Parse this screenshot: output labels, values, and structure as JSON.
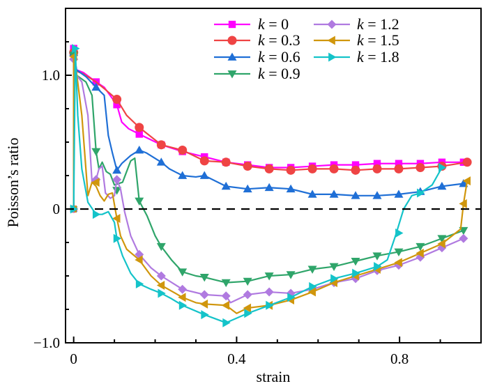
{
  "chart_data": {
    "type": "line",
    "title": "",
    "xlabel": "strain",
    "ylabel": "Poisson’s ratio",
    "xlim": [
      -0.02,
      1.0
    ],
    "ylim": [
      -1.0,
      1.5
    ],
    "x_ticks": [
      0,
      0.4,
      0.8
    ],
    "x_tick_labels": [
      "0",
      "0.4",
      "0.8"
    ],
    "x_minor_ticks": [
      0.1,
      0.2,
      0.3,
      0.5,
      0.6,
      0.7,
      0.9
    ],
    "y_ticks": [
      -1.0,
      0,
      1.0
    ],
    "y_tick_labels": [
      "−1.0",
      "0",
      "1.0"
    ],
    "y_minor_ticks": [
      -0.75,
      -0.5,
      -0.25,
      0.25,
      0.5,
      0.75,
      1.25
    ],
    "reference_line": {
      "y": 0,
      "style": "dashed",
      "color": "#000000"
    },
    "grid": false,
    "legend": {
      "placement": "top-right",
      "columns": 2
    },
    "series": [
      {
        "name": "k = 0",
        "k": "0",
        "color": "#ff00ff",
        "marker": "square",
        "x": [
          0,
          0.007,
          0.024,
          0.055,
          0.075,
          0.106,
          0.118,
          0.135,
          0.161,
          0.215,
          0.267,
          0.321,
          0.374,
          0.427,
          0.48,
          0.533,
          0.586,
          0.639,
          0.692,
          0.745,
          0.798,
          0.851,
          0.904,
          0.957
        ],
        "y": [
          1.2,
          1.04,
          1.02,
          0.95,
          0.91,
          0.78,
          0.65,
          0.6,
          0.56,
          0.48,
          0.43,
          0.39,
          0.35,
          0.33,
          0.31,
          0.31,
          0.32,
          0.33,
          0.33,
          0.34,
          0.34,
          0.34,
          0.35,
          0.35
        ],
        "markers_x": [
          0,
          0.055,
          0.106,
          0.161,
          0.215,
          0.267,
          0.321,
          0.374,
          0.427,
          0.48,
          0.533,
          0.586,
          0.639,
          0.692,
          0.745,
          0.798,
          0.851,
          0.904,
          0.957
        ],
        "markers_y": [
          1.2,
          0.95,
          0.78,
          0.56,
          0.48,
          0.43,
          0.39,
          0.35,
          0.33,
          0.31,
          0.31,
          0.32,
          0.33,
          0.33,
          0.34,
          0.34,
          0.34,
          0.35,
          0.35
        ]
      },
      {
        "name": "k = 0.3",
        "k": "0.3",
        "color": "#ef4444",
        "marker": "circle",
        "x": [
          0,
          0.007,
          0.024,
          0.055,
          0.075,
          0.106,
          0.13,
          0.161,
          0.215,
          0.267,
          0.321,
          0.374,
          0.427,
          0.48,
          0.533,
          0.586,
          0.639,
          0.692,
          0.745,
          0.798,
          0.851,
          0.904,
          0.966
        ],
        "y": [
          1.17,
          1.03,
          1.01,
          0.95,
          0.9,
          0.82,
          0.7,
          0.61,
          0.48,
          0.44,
          0.36,
          0.35,
          0.32,
          0.3,
          0.29,
          0.3,
          0.3,
          0.29,
          0.3,
          0.3,
          0.31,
          0.32,
          0.35
        ],
        "markers_x": [
          0,
          0.106,
          0.161,
          0.215,
          0.267,
          0.321,
          0.374,
          0.427,
          0.48,
          0.533,
          0.586,
          0.639,
          0.692,
          0.745,
          0.798,
          0.851,
          0.904,
          0.966
        ],
        "markers_y": [
          1.17,
          0.82,
          0.61,
          0.48,
          0.44,
          0.36,
          0.35,
          0.32,
          0.3,
          0.29,
          0.3,
          0.3,
          0.29,
          0.3,
          0.3,
          0.31,
          0.32,
          0.35
        ]
      },
      {
        "name": "k = 0.6",
        "k": "0.6",
        "color": "#1f6fd6",
        "marker": "triangle-up",
        "x": [
          0,
          0.007,
          0.03,
          0.055,
          0.075,
          0.085,
          0.095,
          0.106,
          0.118,
          0.14,
          0.161,
          0.178,
          0.215,
          0.235,
          0.267,
          0.3,
          0.321,
          0.374,
          0.427,
          0.48,
          0.533,
          0.586,
          0.639,
          0.692,
          0.745,
          0.798,
          0.851,
          0.904,
          0.957
        ],
        "y": [
          1.17,
          1.04,
          0.99,
          0.91,
          0.85,
          0.55,
          0.42,
          0.29,
          0.34,
          0.4,
          0.44,
          0.42,
          0.35,
          0.3,
          0.25,
          0.24,
          0.25,
          0.17,
          0.15,
          0.16,
          0.15,
          0.11,
          0.11,
          0.1,
          0.1,
          0.11,
          0.13,
          0.17,
          0.19
        ],
        "markers_x": [
          0,
          0.055,
          0.106,
          0.161,
          0.215,
          0.267,
          0.321,
          0.374,
          0.427,
          0.48,
          0.533,
          0.586,
          0.639,
          0.692,
          0.745,
          0.798,
          0.851,
          0.904,
          0.957
        ],
        "markers_y": [
          1.17,
          0.91,
          0.29,
          0.44,
          0.35,
          0.25,
          0.25,
          0.17,
          0.15,
          0.16,
          0.15,
          0.11,
          0.11,
          0.1,
          0.1,
          0.11,
          0.13,
          0.17,
          0.19
        ]
      },
      {
        "name": "k = 0.9",
        "k": "0.9",
        "color": "#2fa56a",
        "marker": "triangle-down",
        "x": [
          0,
          0.007,
          0.03,
          0.045,
          0.055,
          0.062,
          0.07,
          0.08,
          0.09,
          0.1,
          0.12,
          0.14,
          0.15,
          0.161,
          0.18,
          0.2,
          0.215,
          0.24,
          0.267,
          0.3,
          0.321,
          0.374,
          0.427,
          0.48,
          0.533,
          0.586,
          0.639,
          0.692,
          0.745,
          0.798,
          0.851,
          0.904,
          0.957
        ],
        "y": [
          1.15,
          1.0,
          0.95,
          0.85,
          0.43,
          0.3,
          0.35,
          0.28,
          0.26,
          0.18,
          0.2,
          0.36,
          0.38,
          0.06,
          -0.05,
          -0.2,
          -0.28,
          -0.38,
          -0.47,
          -0.5,
          -0.51,
          -0.55,
          -0.54,
          -0.5,
          -0.49,
          -0.45,
          -0.43,
          -0.39,
          -0.35,
          -0.32,
          -0.28,
          -0.22,
          -0.16
        ],
        "markers_x": [
          0,
          0.055,
          0.106,
          0.161,
          0.215,
          0.267,
          0.321,
          0.374,
          0.427,
          0.48,
          0.533,
          0.586,
          0.639,
          0.692,
          0.745,
          0.798,
          0.851,
          0.904,
          0.957
        ],
        "markers_y": [
          1.15,
          0.43,
          0.14,
          0.06,
          -0.28,
          -0.47,
          -0.51,
          -0.55,
          -0.54,
          -0.5,
          -0.49,
          -0.45,
          -0.43,
          -0.39,
          -0.35,
          -0.32,
          -0.28,
          -0.22,
          -0.16
        ]
      },
      {
        "name": "k = 1.2",
        "k": "1.2",
        "color": "#b07ae0",
        "marker": "diamond",
        "x": [
          0,
          0.007,
          0.02,
          0.035,
          0.045,
          0.055,
          0.062,
          0.07,
          0.078,
          0.09,
          0.1,
          0.106,
          0.115,
          0.125,
          0.14,
          0.161,
          0.19,
          0.215,
          0.267,
          0.321,
          0.374,
          0.385,
          0.427,
          0.48,
          0.533,
          0.586,
          0.639,
          0.692,
          0.745,
          0.798,
          0.851,
          0.904,
          0.957
        ],
        "y": [
          1.12,
          1.0,
          0.95,
          0.7,
          0.2,
          0.22,
          0.3,
          0.32,
          0.12,
          0.08,
          0.1,
          0.22,
          0.15,
          -0.02,
          -0.2,
          -0.34,
          -0.44,
          -0.5,
          -0.6,
          -0.64,
          -0.65,
          -0.7,
          -0.64,
          -0.62,
          -0.63,
          -0.6,
          -0.55,
          -0.52,
          -0.46,
          -0.42,
          -0.36,
          -0.29,
          -0.22
        ],
        "markers_x": [
          0,
          0.055,
          0.106,
          0.161,
          0.215,
          0.267,
          0.321,
          0.374,
          0.427,
          0.48,
          0.533,
          0.586,
          0.639,
          0.692,
          0.745,
          0.798,
          0.851,
          0.904,
          0.957
        ],
        "markers_y": [
          1.12,
          0.22,
          0.22,
          -0.34,
          -0.5,
          -0.6,
          -0.64,
          -0.65,
          -0.64,
          -0.62,
          -0.63,
          -0.6,
          -0.55,
          -0.52,
          -0.46,
          -0.42,
          -0.36,
          -0.29,
          -0.22
        ]
      },
      {
        "name": "k = 1.5",
        "k": "1.5",
        "color": "#d0960c",
        "marker": "triangle-left",
        "x": [
          0,
          0.007,
          0.02,
          0.035,
          0.045,
          0.055,
          0.065,
          0.075,
          0.085,
          0.095,
          0.106,
          0.115,
          0.13,
          0.161,
          0.19,
          0.215,
          0.267,
          0.3,
          0.321,
          0.374,
          0.4,
          0.427,
          0.48,
          0.533,
          0.586,
          0.639,
          0.692,
          0.745,
          0.798,
          0.851,
          0.904,
          0.95,
          0.957,
          0.966
        ],
        "y": [
          1.14,
          1.02,
          0.7,
          0.1,
          0.2,
          0.17,
          0.1,
          0.06,
          0.11,
          0.12,
          -0.07,
          -0.2,
          -0.3,
          -0.38,
          -0.5,
          -0.57,
          -0.66,
          -0.7,
          -0.71,
          -0.72,
          -0.78,
          -0.74,
          -0.72,
          -0.68,
          -0.62,
          -0.55,
          -0.5,
          -0.45,
          -0.4,
          -0.33,
          -0.26,
          -0.15,
          0.04,
          0.21
        ],
        "markers_x": [
          0,
          0.055,
          0.106,
          0.161,
          0.215,
          0.267,
          0.321,
          0.374,
          0.427,
          0.48,
          0.533,
          0.586,
          0.639,
          0.692,
          0.745,
          0.798,
          0.851,
          0.904,
          0.957,
          0.966
        ],
        "markers_y": [
          1.14,
          0.2,
          -0.07,
          -0.38,
          -0.57,
          -0.66,
          -0.71,
          -0.72,
          -0.74,
          -0.72,
          -0.68,
          -0.62,
          -0.55,
          -0.5,
          -0.45,
          -0.4,
          -0.33,
          -0.26,
          0.04,
          0.21
        ]
      },
      {
        "name": "k = 1.8",
        "k": "1.8",
        "color": "#14c3c9",
        "marker": "triangle-right",
        "x": [
          0,
          0.004,
          0.01,
          0.02,
          0.035,
          0.055,
          0.07,
          0.085,
          0.1,
          0.106,
          0.12,
          0.14,
          0.161,
          0.19,
          0.215,
          0.24,
          0.267,
          0.321,
          0.374,
          0.427,
          0.48,
          0.533,
          0.586,
          0.639,
          0.692,
          0.745,
          0.77,
          0.79,
          0.81,
          0.83,
          0.851,
          0.88,
          0.904
        ],
        "y": [
          0,
          1.2,
          0.7,
          0.3,
          0.05,
          -0.04,
          -0.04,
          -0.02,
          -0.1,
          -0.22,
          -0.35,
          -0.48,
          -0.56,
          -0.6,
          -0.63,
          -0.67,
          -0.72,
          -0.79,
          -0.85,
          -0.78,
          -0.72,
          -0.66,
          -0.58,
          -0.52,
          -0.48,
          -0.43,
          -0.38,
          -0.2,
          0.0,
          0.1,
          0.12,
          0.18,
          0.31
        ],
        "markers_x": [
          0,
          0.004,
          0.055,
          0.106,
          0.161,
          0.215,
          0.267,
          0.321,
          0.374,
          0.427,
          0.48,
          0.533,
          0.586,
          0.639,
          0.692,
          0.745,
          0.798,
          0.851,
          0.904
        ],
        "markers_y": [
          0,
          1.2,
          -0.04,
          -0.22,
          -0.56,
          -0.63,
          -0.72,
          -0.79,
          -0.85,
          -0.78,
          -0.72,
          -0.66,
          -0.58,
          -0.52,
          -0.48,
          -0.43,
          -0.18,
          0.12,
          0.31
        ]
      }
    ],
    "origin_points": {
      "x": 0,
      "y": 0,
      "note_visible": "all series share a marker cluster at (0, 0)"
    }
  }
}
